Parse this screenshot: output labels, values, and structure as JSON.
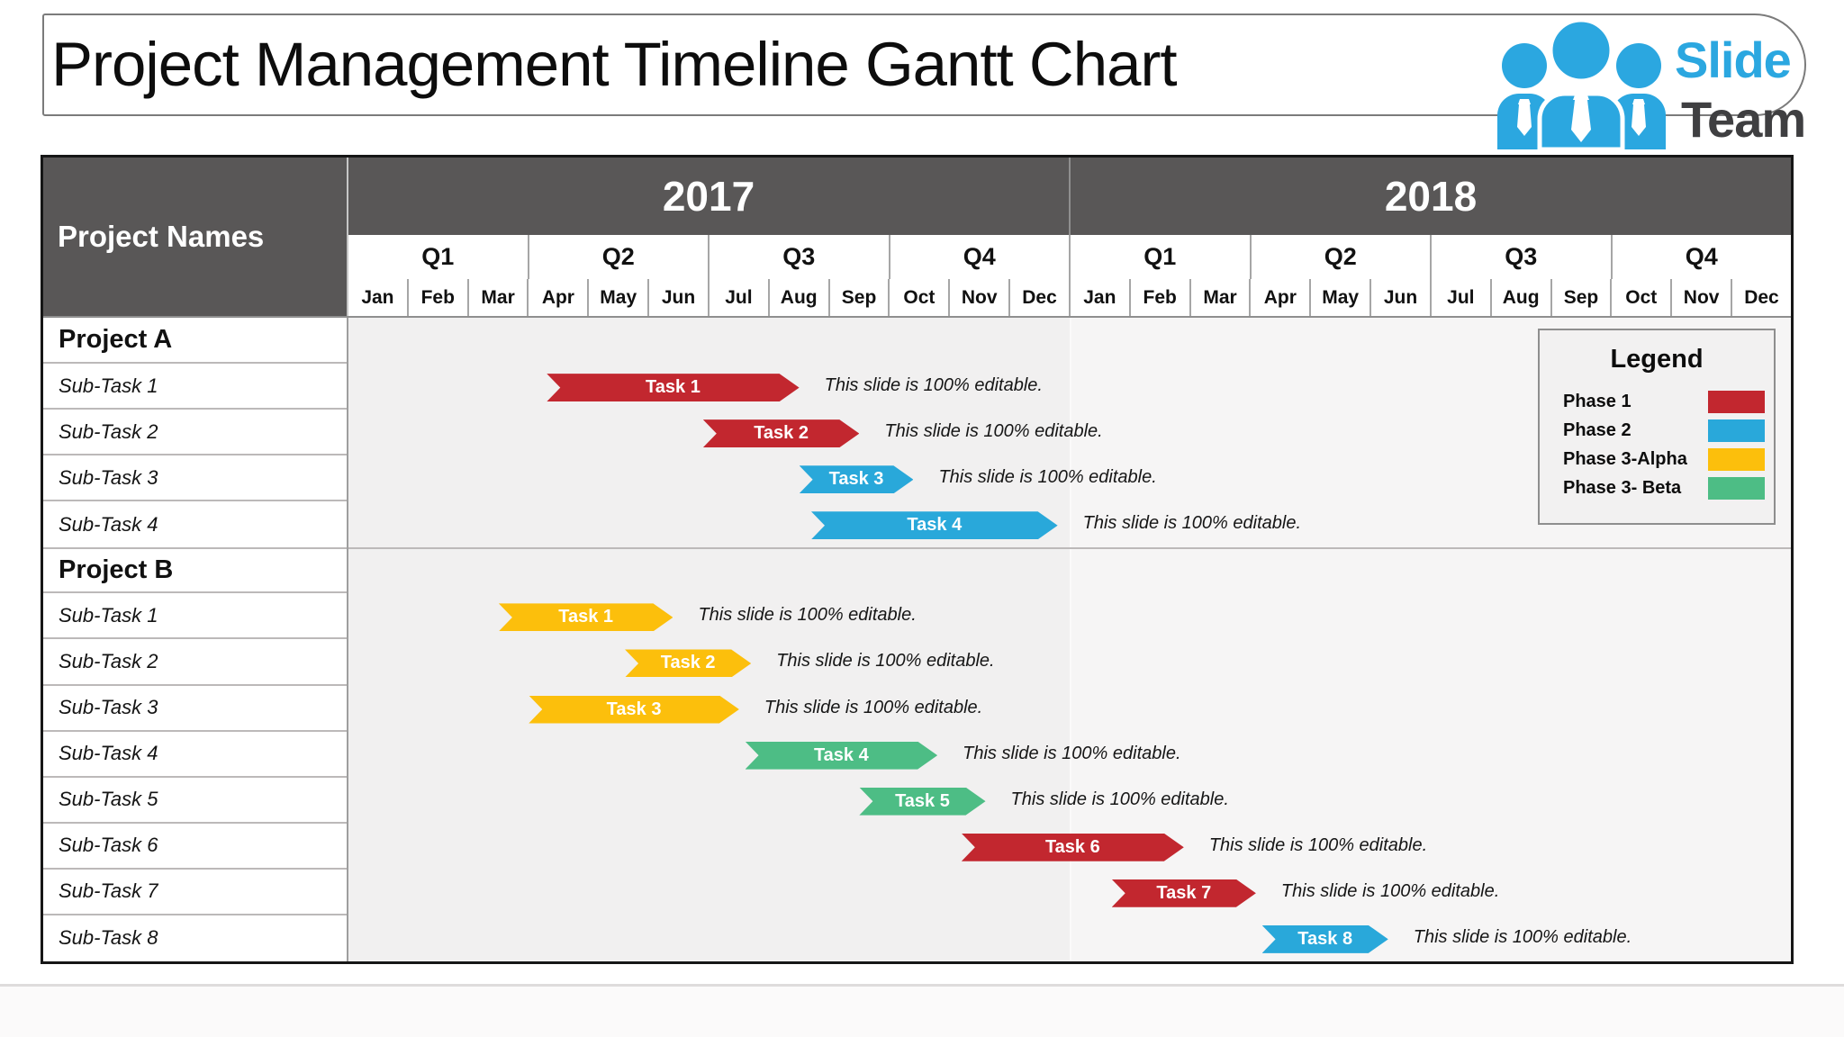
{
  "title": "Project Management Timeline Gantt Chart",
  "logo": {
    "slide": "Slide",
    "team": "Team",
    "slide_color": "#2ba7e0",
    "team_color": "#3f3f41",
    "people_color": "#2ba7e0"
  },
  "colors": {
    "phase1": "#c2272f",
    "phase2": "#29a8da",
    "phase3_alpha": "#fcbf0c",
    "phase3_beta": "#4dbd85",
    "header_bg": "#595757",
    "chart_bg_2017": "#f1f0f0",
    "chart_bg_2018": "#f6f5f5"
  },
  "header": {
    "corner": "Project Names",
    "years": [
      "2017",
      "2018"
    ],
    "quarters": [
      "Q1",
      "Q2",
      "Q3",
      "Q4"
    ],
    "months": [
      "Jan",
      "Feb",
      "Mar",
      "Apr",
      "May",
      "Jun",
      "Jul",
      "Aug",
      "Sep",
      "Oct",
      "Nov",
      "Dec"
    ]
  },
  "legend": {
    "title": "Legend",
    "items": [
      {
        "label": "Phase 1",
        "phase": "phase1"
      },
      {
        "label": "Phase 2",
        "phase": "phase2"
      },
      {
        "label": "Phase 3-Alpha",
        "phase": "phase3_alpha"
      },
      {
        "label": "Phase 3- Beta",
        "phase": "phase3_beta"
      }
    ]
  },
  "note": "This slide is 100% editable.",
  "chart_data": {
    "type": "gantt",
    "title": "Project Management Timeline Gantt Chart",
    "x_axis": {
      "years": [
        "2017",
        "2018"
      ],
      "months_per_year": 12,
      "range_months": [
        0,
        24
      ]
    },
    "phases": [
      {
        "key": "phase1",
        "label": "Phase 1",
        "color": "#c2272f"
      },
      {
        "key": "phase2",
        "label": "Phase 2",
        "color": "#29a8da"
      },
      {
        "key": "phase3_alpha",
        "label": "Phase 3-Alpha",
        "color": "#fcbf0c"
      },
      {
        "key": "phase3_beta",
        "label": "Phase 3- Beta",
        "color": "#4dbd85"
      }
    ],
    "projects": [
      {
        "name": "Project A",
        "rows": [
          {
            "label": "Sub-Task 1",
            "task": "Task 1",
            "phase": "phase1",
            "start_month": 3.3,
            "end_month": 7.5
          },
          {
            "label": "Sub-Task 2",
            "task": "Task 2",
            "phase": "phase1",
            "start_month": 5.9,
            "end_month": 8.5
          },
          {
            "label": "Sub-Task 3",
            "task": "Task 3",
            "phase": "phase2",
            "start_month": 7.5,
            "end_month": 9.4
          },
          {
            "label": "Sub-Task 4",
            "task": "Task 4",
            "phase": "phase2",
            "start_month": 7.7,
            "end_month": 11.8
          }
        ]
      },
      {
        "name": "Project B",
        "rows": [
          {
            "label": "Sub-Task 1",
            "task": "Task 1",
            "phase": "phase3_alpha",
            "start_month": 2.5,
            "end_month": 5.4
          },
          {
            "label": "Sub-Task 2",
            "task": "Task 2",
            "phase": "phase3_alpha",
            "start_month": 4.6,
            "end_month": 6.7
          },
          {
            "label": "Sub-Task 3",
            "task": "Task 3",
            "phase": "phase3_alpha",
            "start_month": 3.0,
            "end_month": 6.5
          },
          {
            "label": "Sub-Task 4",
            "task": "Task 4",
            "phase": "phase3_beta",
            "start_month": 6.6,
            "end_month": 9.8
          },
          {
            "label": "Sub-Task 5",
            "task": "Task 5",
            "phase": "phase3_beta",
            "start_month": 8.5,
            "end_month": 10.6
          },
          {
            "label": "Sub-Task 6",
            "task": "Task 6",
            "phase": "phase1",
            "start_month": 10.2,
            "end_month": 13.9
          },
          {
            "label": "Sub-Task 7",
            "task": "Task 7",
            "phase": "phase1",
            "start_month": 12.7,
            "end_month": 15.1
          },
          {
            "label": "Sub-Task 8",
            "task": "Task 8",
            "phase": "phase2",
            "start_month": 15.2,
            "end_month": 17.3
          }
        ]
      }
    ]
  }
}
